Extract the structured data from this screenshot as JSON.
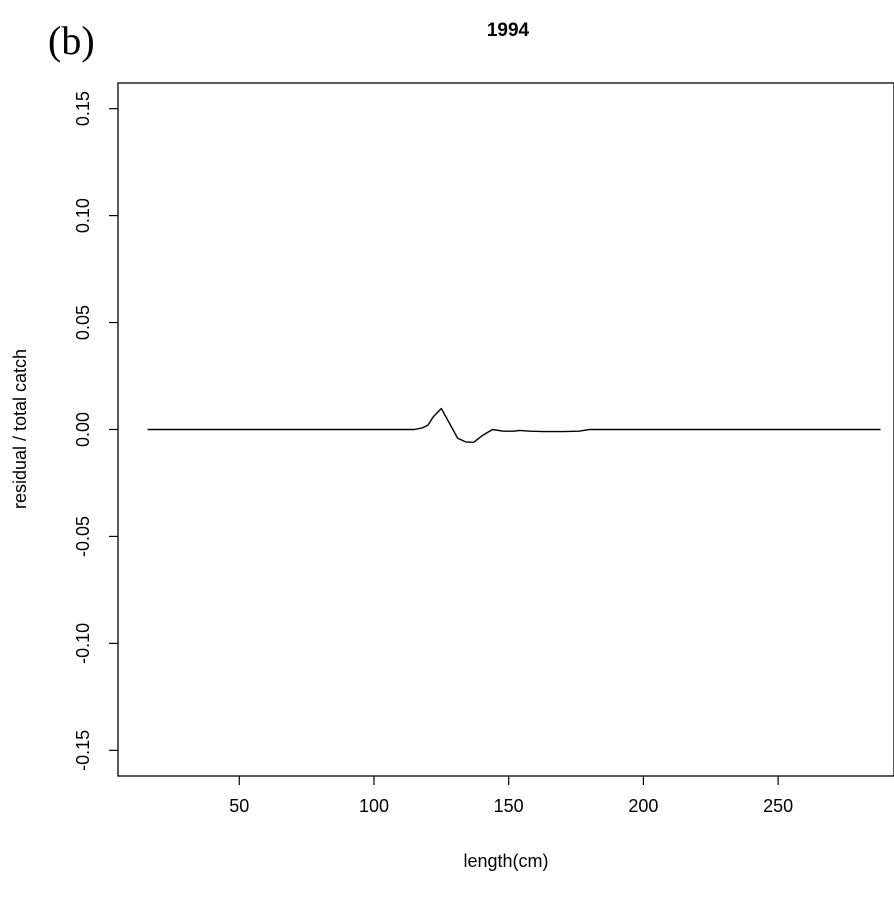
{
  "panel_label": "(b)",
  "chart_data": {
    "type": "line",
    "title": "1994",
    "xlabel": "length(cm)",
    "ylabel": "residual / total catch",
    "xlim": [
      5,
      293
    ],
    "ylim": [
      -0.162,
      0.162
    ],
    "x_ticks": [
      50,
      100,
      150,
      200,
      250
    ],
    "x_tick_labels": [
      "50",
      "100",
      "150",
      "200",
      "250"
    ],
    "y_ticks": [
      -0.15,
      -0.1,
      -0.05,
      0.0,
      0.05,
      0.1,
      0.15
    ],
    "y_tick_labels": [
      "-0.15",
      "-0.10",
      "-0.05",
      "0.00",
      "0.05",
      "0.10",
      "0.15"
    ],
    "grid": false,
    "series": [
      {
        "color": "#000000",
        "x": [
          16,
          115,
          118,
          120,
          122,
          125,
          128,
          131,
          134,
          137,
          140,
          144,
          148,
          152,
          154,
          158,
          163,
          170,
          176,
          180,
          200,
          250,
          288
        ],
        "y": [
          0,
          0,
          0.0008,
          0.002,
          0.006,
          0.0098,
          0.003,
          -0.004,
          -0.0058,
          -0.006,
          -0.003,
          0,
          -0.0008,
          -0.0008,
          -0.0004,
          -0.0008,
          -0.001,
          -0.001,
          -0.0008,
          0,
          0,
          0,
          0
        ]
      }
    ]
  }
}
